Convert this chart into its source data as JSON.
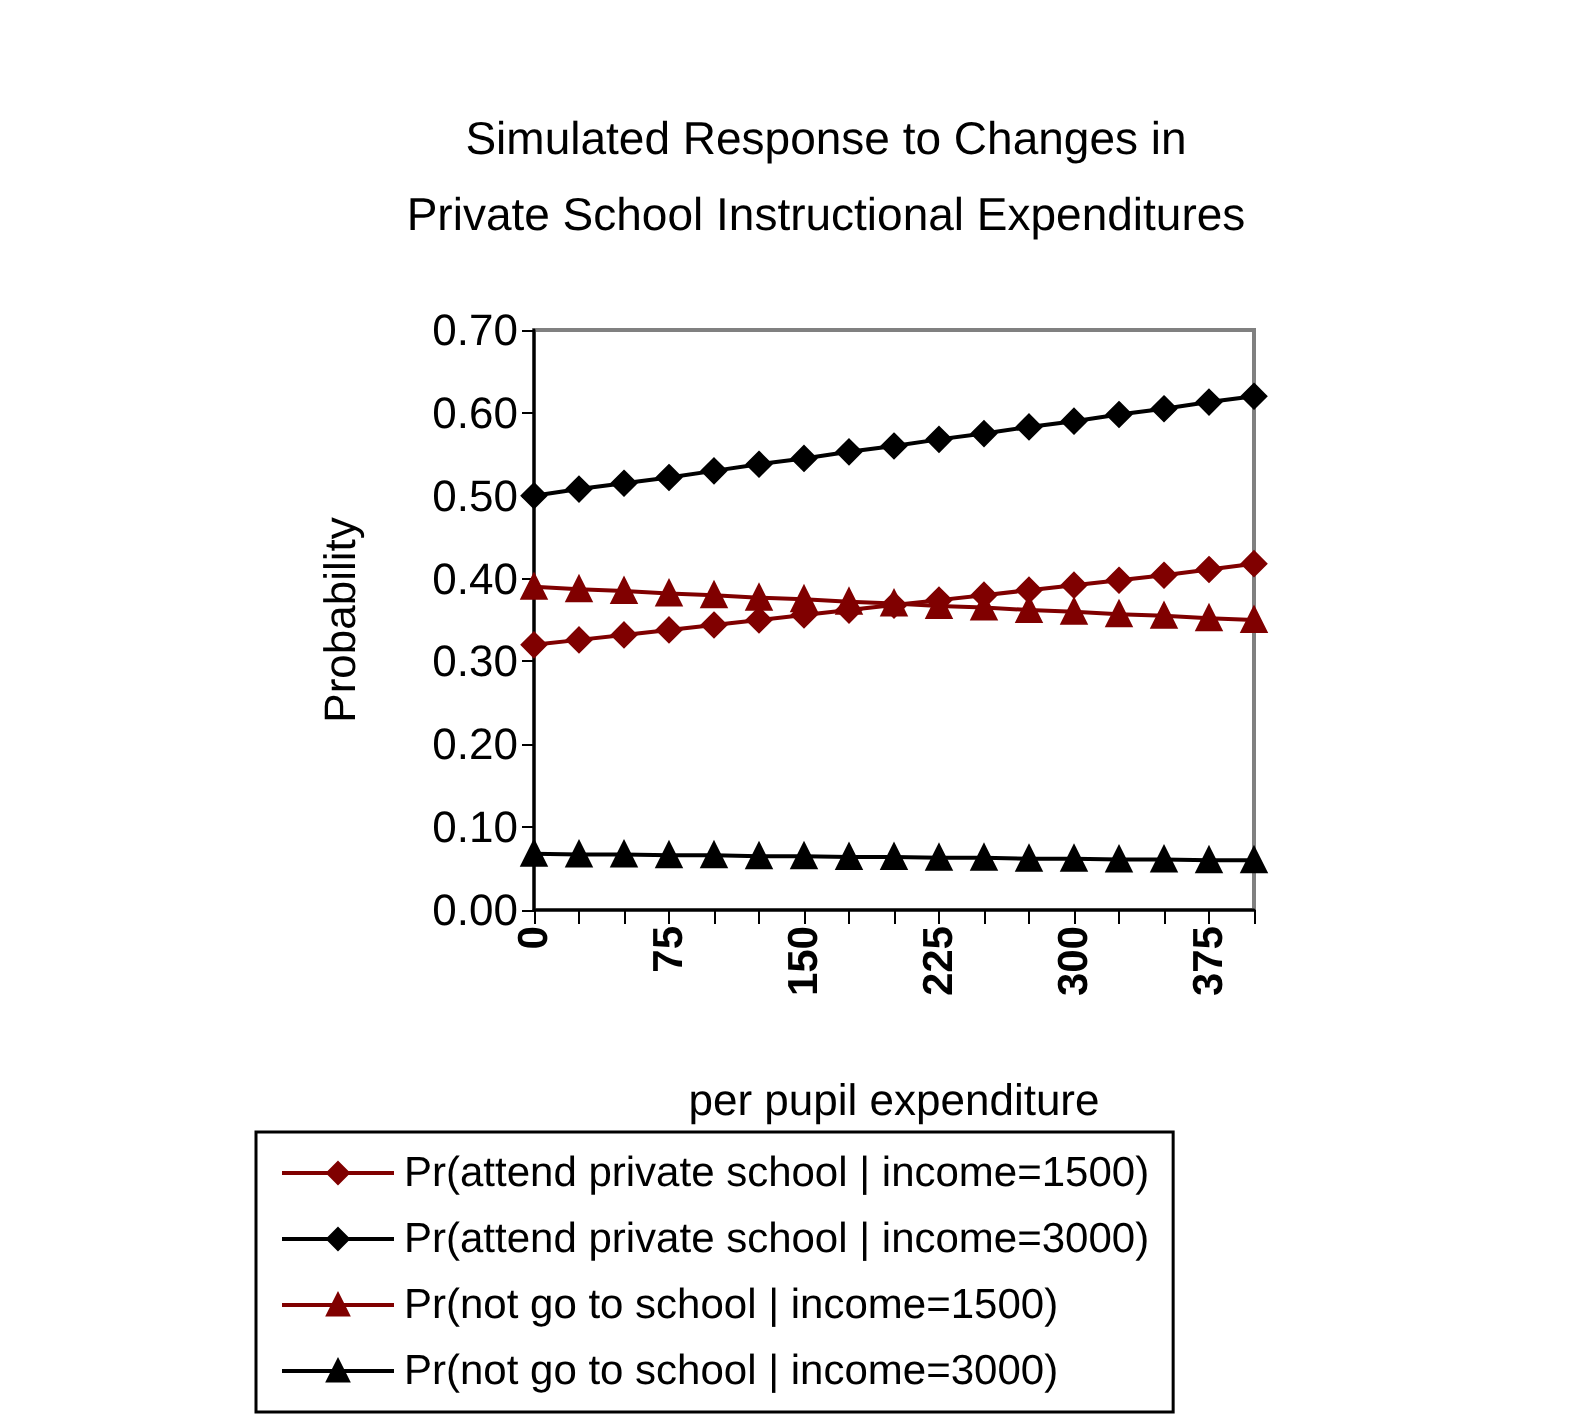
{
  "chart_data": {
    "type": "line",
    "title": "Simulated Response to Changes in\nPrivate School Instructional Expenditures",
    "xlabel": "per pupil expenditure",
    "ylabel": "Probability",
    "x": [
      0,
      25,
      50,
      75,
      100,
      125,
      150,
      175,
      200,
      225,
      250,
      275,
      300,
      325,
      350,
      375,
      400
    ],
    "series": [
      {
        "name": "Pr(attend private school | income=1500)",
        "color": "#800000",
        "marker": "diamond",
        "values": [
          0.32,
          0.326,
          0.332,
          0.338,
          0.344,
          0.35,
          0.356,
          0.362,
          0.368,
          0.374,
          0.38,
          0.386,
          0.392,
          0.398,
          0.404,
          0.411,
          0.418
        ]
      },
      {
        "name": "Pr(attend private school | income=3000)",
        "color": "#000000",
        "marker": "diamond",
        "values": [
          0.5,
          0.508,
          0.515,
          0.522,
          0.53,
          0.538,
          0.545,
          0.553,
          0.56,
          0.568,
          0.575,
          0.583,
          0.59,
          0.598,
          0.605,
          0.613,
          0.62
        ]
      },
      {
        "name": "Pr(not go to school | income=1500)",
        "color": "#800000",
        "marker": "triangle",
        "values": [
          0.39,
          0.387,
          0.385,
          0.382,
          0.38,
          0.377,
          0.375,
          0.372,
          0.37,
          0.367,
          0.365,
          0.362,
          0.36,
          0.357,
          0.355,
          0.352,
          0.35
        ]
      },
      {
        "name": "Pr(not go to school | income=3000)",
        "color": "#000000",
        "marker": "triangle",
        "values": [
          0.068,
          0.067,
          0.067,
          0.066,
          0.066,
          0.065,
          0.065,
          0.064,
          0.064,
          0.063,
          0.063,
          0.062,
          0.062,
          0.061,
          0.061,
          0.06,
          0.06
        ]
      }
    ],
    "xlim": [
      0,
      400
    ],
    "xticks": [
      0,
      {
        "value": 25,
        "label": null
      },
      {
        "value": 50,
        "label": null
      },
      75,
      {
        "value": 100,
        "label": null
      },
      {
        "value": 125,
        "label": null
      },
      150,
      {
        "value": 175,
        "label": null
      },
      {
        "value": 200,
        "label": null
      },
      225,
      {
        "value": 250,
        "label": null
      },
      {
        "value": 275,
        "label": null
      },
      300,
      {
        "value": 325,
        "label": null
      },
      {
        "value": 350,
        "label": null
      },
      375,
      {
        "value": 400,
        "label": null
      }
    ],
    "ylim": [
      0,
      0.7
    ],
    "yticks": [
      {
        "value": 0,
        "label": "0.00"
      },
      {
        "value": 0.1,
        "label": "0.10"
      },
      {
        "value": 0.2,
        "label": "0.20"
      },
      {
        "value": 0.3,
        "label": "0.30"
      },
      {
        "value": 0.4,
        "label": "0.40"
      },
      {
        "value": 0.5,
        "label": "0.50"
      },
      {
        "value": 0.6,
        "label": "0.60"
      },
      {
        "value": 0.7,
        "label": "0.70"
      }
    ],
    "grid": false,
    "legend": "bottom",
    "line_style": "solid"
  }
}
